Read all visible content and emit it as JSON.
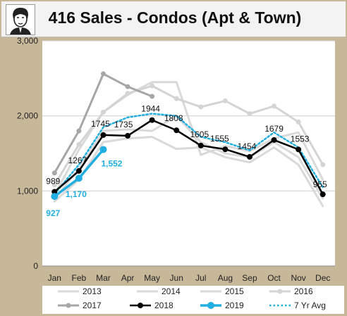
{
  "chart_data": {
    "type": "line",
    "title": "416 Sales - Condos (Apt & Town)",
    "categories": [
      "Jan",
      "Feb",
      "Mar",
      "Apr",
      "May",
      "Jun",
      "Jul",
      "Aug",
      "Sep",
      "Oct",
      "Nov",
      "Dec"
    ],
    "ylim": [
      0,
      3000
    ],
    "yticks": [
      0,
      1000,
      2000,
      3000
    ],
    "ytick_labels": [
      "0",
      "1,000",
      "2,000",
      "3,000"
    ],
    "grid": "horizontal",
    "legend_position": "bottom",
    "series": [
      {
        "name": "2013",
        "color": "#d9d9d9",
        "values": [
          860,
          1150,
          1650,
          1700,
          1720,
          1560,
          1580,
          1450,
          1380,
          1580,
          1350,
          800
        ]
      },
      {
        "name": "2014",
        "color": "#d9d9d9",
        "values": [
          890,
          1300,
          1800,
          1820,
          1800,
          2000,
          1650,
          1500,
          1450,
          1650,
          1450,
          900
        ]
      },
      {
        "name": "2015",
        "color": "#d9d9d9",
        "values": [
          950,
          1550,
          2050,
          2280,
          2450,
          2450,
          1480,
          1600,
          1530,
          1700,
          1780,
          1150
        ]
      },
      {
        "name": "2016",
        "color": "#d4d4d4",
        "values": [
          1080,
          1620,
          2050,
          2300,
          2400,
          2230,
          2120,
          2200,
          2030,
          2130,
          1920,
          1350
        ]
      },
      {
        "name": "2017",
        "color": "#a6a6a6",
        "values": [
          1240,
          1800,
          2560,
          2390,
          2260,
          null,
          null,
          null,
          null,
          null,
          null,
          null
        ]
      },
      {
        "name": "2018",
        "color": "#000000",
        "values": [
          989,
          1267,
          1745,
          1735,
          1944,
          1808,
          1605,
          1555,
          1454,
          1679,
          1553,
          955
        ]
      },
      {
        "name": "2019",
        "color": "#21aee0",
        "values": [
          927,
          1170,
          1552,
          null,
          null,
          null,
          null,
          null,
          null,
          null,
          null,
          null
        ]
      },
      {
        "name": "7 Yr Avg",
        "color": "#21aee0",
        "values": [
          960,
          1350,
          1850,
          1980,
          2030,
          2000,
          1720,
          1650,
          1540,
          1780,
          1580,
          1050
        ]
      }
    ],
    "labels_2018": [
      "989",
      "1267",
      "1745",
      "1735",
      "1944",
      "1808",
      "1605",
      "1555",
      "1454",
      "1679",
      "1553",
      "955"
    ],
    "labels_2019": [
      "927",
      "1,170",
      "1,552"
    ]
  }
}
